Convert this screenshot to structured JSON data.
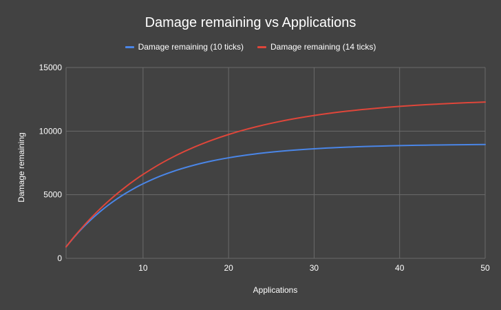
{
  "chart_data": {
    "type": "line",
    "title": "Damage remaining vs Applications",
    "xlabel": "Applications",
    "ylabel": "Damage remaining",
    "xlim": [
      1,
      50
    ],
    "ylim": [
      0,
      15000
    ],
    "x_ticks": [
      "10",
      "20",
      "30",
      "40",
      "50"
    ],
    "y_ticks": [
      "0",
      "5000",
      "10000",
      "15000"
    ],
    "grid": true,
    "legend_position": "top",
    "x": [
      1,
      2,
      3,
      4,
      5,
      6,
      7,
      8,
      9,
      10,
      12,
      14,
      16,
      18,
      20,
      22,
      24,
      26,
      28,
      30,
      32,
      34,
      36,
      38,
      40,
      42,
      44,
      46,
      48,
      50
    ],
    "series": [
      {
        "name": "Damage remaining (10 ticks)",
        "color": "#4a86e8",
        "values": [
          900,
          1710,
          2439,
          3095,
          3686,
          4217,
          4695,
          5126,
          5513,
          5862,
          6458,
          6940,
          7331,
          7647,
          7903,
          8110,
          8278,
          8414,
          8524,
          8613,
          8686,
          8744,
          8792,
          8830,
          8861,
          8887,
          8907,
          8924,
          8937,
          8948
        ]
      },
      {
        "name": "Damage remaining (14 ticks)",
        "color": "#e0463a",
        "values": [
          900,
          1736,
          2512,
          3233,
          3902,
          4524,
          5101,
          5637,
          6134,
          6596,
          7422,
          8134,
          8748,
          9277,
          9734,
          10128,
          10467,
          10760,
          11012,
          11230,
          11418,
          11580,
          11720,
          11840,
          11944,
          12034,
          12111,
          12177,
          12235,
          12284
        ]
      }
    ]
  },
  "colors": {
    "background": "#424242",
    "grid": "#6b6b6b",
    "text": "#ffffff"
  }
}
